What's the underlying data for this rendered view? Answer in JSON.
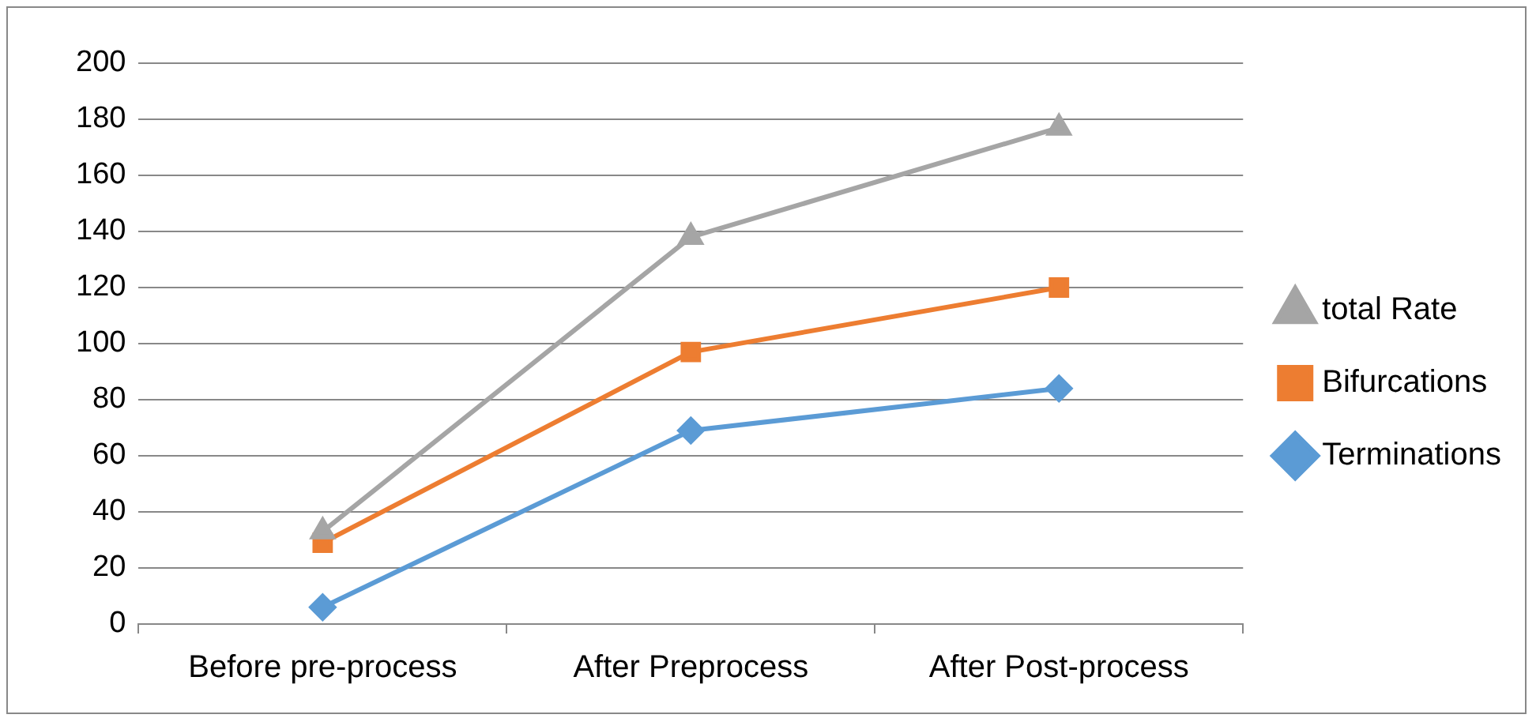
{
  "chart_data": {
    "type": "line",
    "categories": [
      "Before pre-process",
      "After Preprocess",
      "After Post-process"
    ],
    "series": [
      {
        "name": "total Rate",
        "color": "#a5a5a5",
        "marker": "triangle",
        "values": [
          33,
          138,
          177
        ]
      },
      {
        "name": "Bifurcations",
        "color": "#ed7d31",
        "marker": "square",
        "values": [
          29,
          97,
          120
        ]
      },
      {
        "name": "Terminations",
        "color": "#5b9bd5",
        "marker": "diamond",
        "values": [
          6,
          69,
          84
        ]
      }
    ],
    "ylim": [
      0,
      200
    ],
    "yticks": [
      0,
      20,
      40,
      60,
      80,
      100,
      120,
      140,
      160,
      180,
      200
    ],
    "grid": "y",
    "legend": "right"
  }
}
